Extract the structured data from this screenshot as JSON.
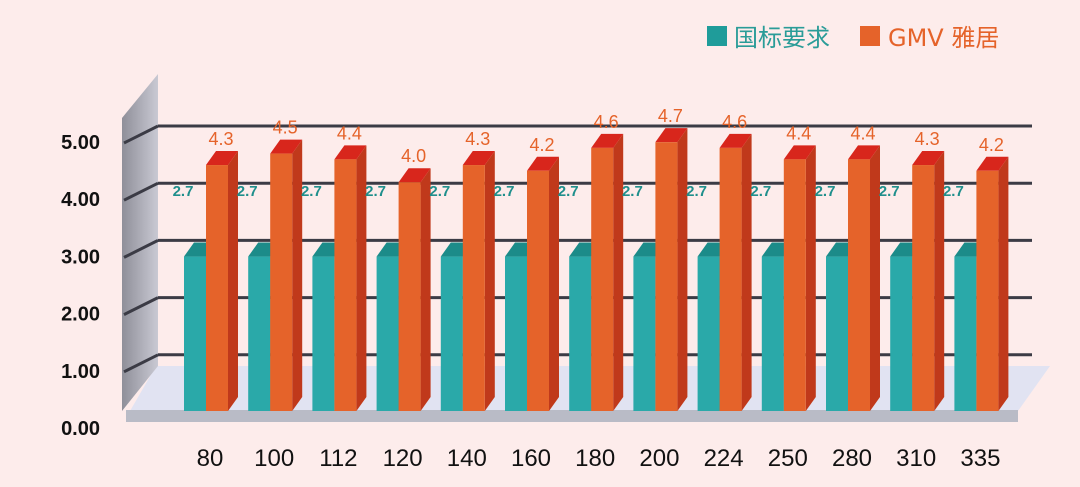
{
  "chart_data": {
    "type": "bar",
    "categories": [
      "80",
      "100",
      "112",
      "120",
      "140",
      "160",
      "180",
      "200",
      "224",
      "250",
      "280",
      "310",
      "335"
    ],
    "series": [
      {
        "name": "国标要求",
        "color": "#26a6a8",
        "values": [
          2.7,
          2.7,
          2.7,
          2.7,
          2.7,
          2.7,
          2.7,
          2.7,
          2.7,
          2.7,
          2.7,
          2.7,
          2.7
        ],
        "labels": [
          "2.7",
          "2.7",
          "2.7",
          "2.7",
          "2.7",
          "2.7",
          "2.7",
          "2.7",
          "2.7",
          "2.7",
          "2.7",
          "2.7",
          "2.7"
        ]
      },
      {
        "name": "GMV 雅居",
        "color": "#e5632a",
        "values": [
          4.3,
          4.5,
          4.4,
          4.0,
          4.3,
          4.2,
          4.6,
          4.7,
          4.6,
          4.4,
          4.4,
          4.3,
          4.2
        ],
        "labels": [
          "4.3",
          "4.5",
          "4.4",
          "4.0",
          "4.3",
          "4.2",
          "4.6",
          "4.7",
          "4.6",
          "4.4",
          "4.4",
          "4.3",
          "4.2"
        ]
      }
    ],
    "y_ticks": [
      "0.00",
      "1.00",
      "2.00",
      "3.00",
      "4.00",
      "5.00"
    ],
    "ylim": [
      0,
      5
    ],
    "grid": true,
    "legend": "top-right",
    "title": "",
    "xlabel": "",
    "ylabel": ""
  }
}
